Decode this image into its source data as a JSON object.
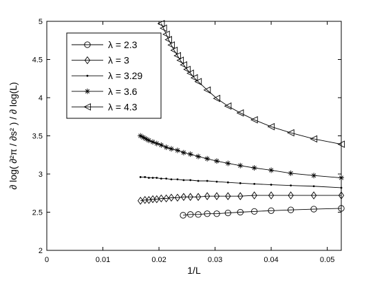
{
  "chart_data": {
    "type": "line",
    "xlabel": "1/L",
    "ylabel": "∂ log( ∂²π / ∂s² ) / ∂ log(L)",
    "xlim": [
      0,
      0.0525
    ],
    "ylim": [
      2,
      5
    ],
    "xticks": [
      0,
      0.01,
      0.02,
      0.03,
      0.04,
      0.05
    ],
    "xtick_labels": [
      "0",
      "0.01",
      "0.02",
      "0.03",
      "0.04",
      "0.05"
    ],
    "yticks": [
      2,
      2.5,
      3,
      3.5,
      4,
      4.5,
      5
    ],
    "ytick_labels": [
      "2",
      "2.5",
      "3",
      "3.5",
      "4",
      "4.5",
      "5"
    ],
    "grid": false,
    "legend_position": "top-left",
    "series": [
      {
        "name": "λ = 2.3",
        "marker": "circle",
        "x": [
          0.0243,
          0.0256,
          0.027,
          0.0286,
          0.0303,
          0.0323,
          0.0345,
          0.037,
          0.04,
          0.0435,
          0.0476,
          0.0525
        ],
        "y": [
          2.46,
          2.47,
          2.47,
          2.48,
          2.48,
          2.49,
          2.5,
          2.51,
          2.52,
          2.53,
          2.54,
          2.55
        ]
      },
      {
        "name": "λ = 3",
        "marker": "diamond",
        "x": [
          0.0167,
          0.0175,
          0.0182,
          0.0189,
          0.0196,
          0.0204,
          0.0213,
          0.0222,
          0.0233,
          0.0244,
          0.0256,
          0.027,
          0.0286,
          0.0303,
          0.0323,
          0.0345,
          0.037,
          0.04,
          0.0435,
          0.0476,
          0.0525
        ],
        "y": [
          2.65,
          2.66,
          2.66,
          2.67,
          2.67,
          2.68,
          2.68,
          2.69,
          2.69,
          2.7,
          2.7,
          2.7,
          2.71,
          2.71,
          2.71,
          2.71,
          2.72,
          2.72,
          2.72,
          2.72,
          2.72
        ]
      },
      {
        "name": "λ = 3.29",
        "marker": "dot",
        "x": [
          0.0167,
          0.0175,
          0.0182,
          0.0189,
          0.0196,
          0.0204,
          0.0213,
          0.0222,
          0.0233,
          0.0244,
          0.0256,
          0.027,
          0.0286,
          0.0303,
          0.0323,
          0.0345,
          0.037,
          0.04,
          0.0435,
          0.0476,
          0.0525
        ],
        "y": [
          2.96,
          2.96,
          2.95,
          2.95,
          2.95,
          2.94,
          2.94,
          2.93,
          2.93,
          2.92,
          2.92,
          2.91,
          2.91,
          2.9,
          2.89,
          2.88,
          2.87,
          2.86,
          2.85,
          2.84,
          2.82
        ]
      },
      {
        "name": "λ = 3.6",
        "marker": "asterisk",
        "x": [
          0.0167,
          0.0172,
          0.0177,
          0.0182,
          0.0189,
          0.0196,
          0.0204,
          0.0213,
          0.0222,
          0.0233,
          0.0244,
          0.0256,
          0.027,
          0.0286,
          0.0303,
          0.0323,
          0.0345,
          0.037,
          0.04,
          0.0435,
          0.0476,
          0.0525
        ],
        "y": [
          3.5,
          3.48,
          3.46,
          3.44,
          3.42,
          3.4,
          3.38,
          3.35,
          3.33,
          3.31,
          3.28,
          3.26,
          3.23,
          3.2,
          3.17,
          3.14,
          3.11,
          3.08,
          3.05,
          3.01,
          2.98,
          2.95
        ]
      },
      {
        "name": "λ = 4.3",
        "marker": "triangle-left",
        "x": [
          0.0204,
          0.0208,
          0.0213,
          0.0217,
          0.0222,
          0.0227,
          0.0233,
          0.0238,
          0.0244,
          0.025,
          0.0256,
          0.0263,
          0.027,
          0.0286,
          0.0303,
          0.0323,
          0.0345,
          0.037,
          0.04,
          0.0435,
          0.0476,
          0.0525
        ],
        "y": [
          4.97,
          4.91,
          4.83,
          4.76,
          4.69,
          4.62,
          4.55,
          4.49,
          4.43,
          4.37,
          4.32,
          4.26,
          4.21,
          4.1,
          3.99,
          3.89,
          3.8,
          3.71,
          3.62,
          3.54,
          3.46,
          3.39
        ]
      }
    ]
  }
}
